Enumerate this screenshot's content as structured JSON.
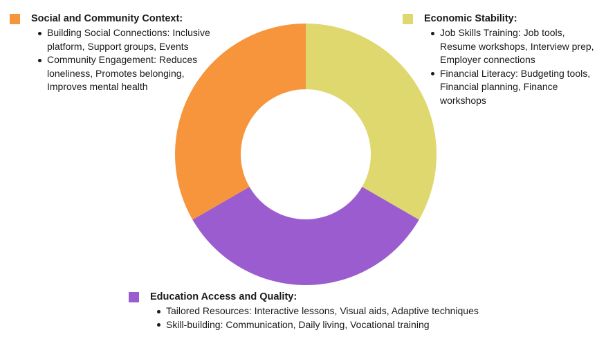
{
  "chart_data": {
    "type": "pie",
    "style": "donut",
    "segments": [
      {
        "name": "Economic Stability",
        "value": 33.33,
        "color": "#dfd86e"
      },
      {
        "name": "Education Access and Quality",
        "value": 33.33,
        "color": "#9b5ccf"
      },
      {
        "name": "Social and Community Context",
        "value": 33.33,
        "color": "#f7953d"
      }
    ]
  },
  "blocks": {
    "social": {
      "title": "Social and Community Context:",
      "color": "#f7953d",
      "items": [
        "Building Social Connections: Inclusive platform, Support groups, Events",
        "Community Engagement: Reduces loneliness, Promotes belonging, Improves mental health"
      ]
    },
    "economic": {
      "title": "Economic Stability:",
      "color": "#dfd86e",
      "items": [
        "Job Skills Training: Job tools, Resume workshops, Interview prep, Employer connections",
        "Financial Literacy: Budgeting tools, Financial planning, Finance workshops"
      ]
    },
    "education": {
      "title": "Education Access and Quality:",
      "color": "#9b5ccf",
      "items": [
        "Tailored Resources: Interactive lessons, Visual aids, Adaptive techniques",
        "Skill-building: Communication, Daily living, Vocational training"
      ]
    }
  }
}
